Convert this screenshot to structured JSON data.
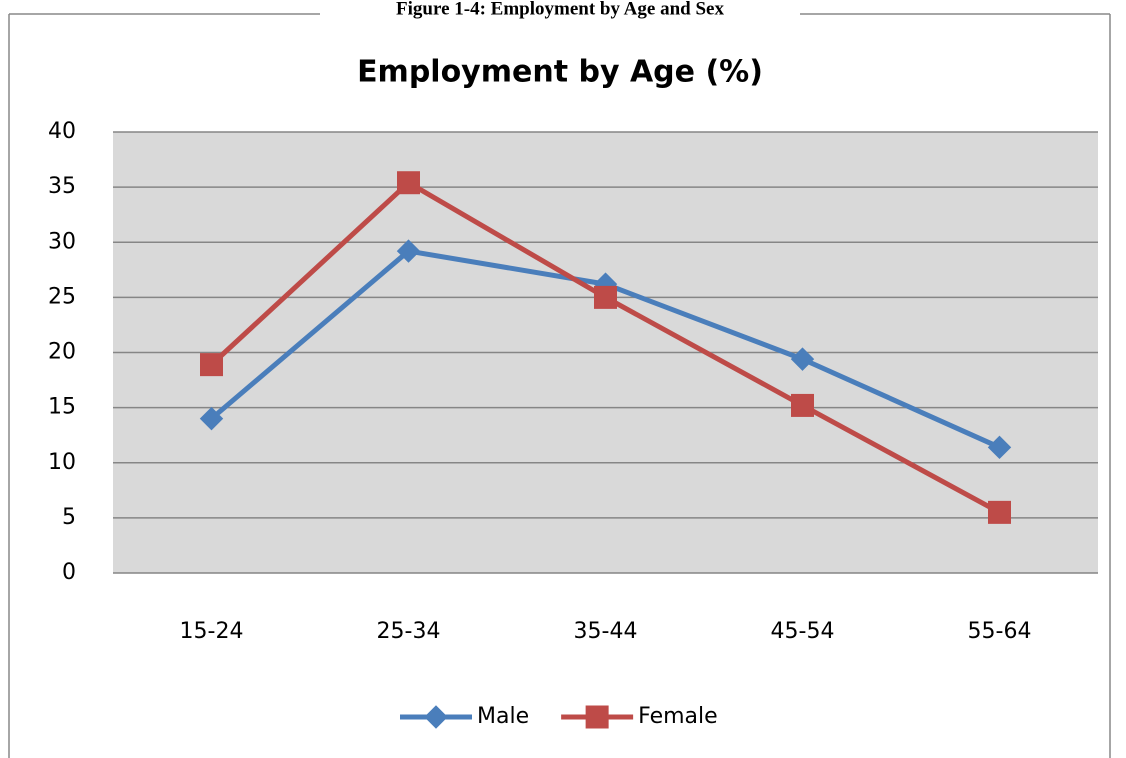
{
  "caption": "Figure 1-4: Employment by Age and Sex",
  "chart_data": {
    "type": "line",
    "title": "Employment by Age (%)",
    "categories": [
      "15-24",
      "25-34",
      "35-44",
      "45-54",
      "55-64"
    ],
    "series": [
      {
        "name": "Male",
        "color": "#4a7ebb",
        "marker": "diamond",
        "values": [
          14.0,
          29.2,
          26.2,
          19.4,
          11.4
        ]
      },
      {
        "name": "Female",
        "color": "#be4b48",
        "marker": "square",
        "values": [
          18.9,
          35.4,
          25.0,
          15.2,
          5.5
        ]
      }
    ],
    "ylim": [
      0,
      40
    ],
    "yticks": [
      0,
      5,
      10,
      15,
      20,
      25,
      30,
      35,
      40
    ],
    "grid": true,
    "legend": "bottom"
  }
}
